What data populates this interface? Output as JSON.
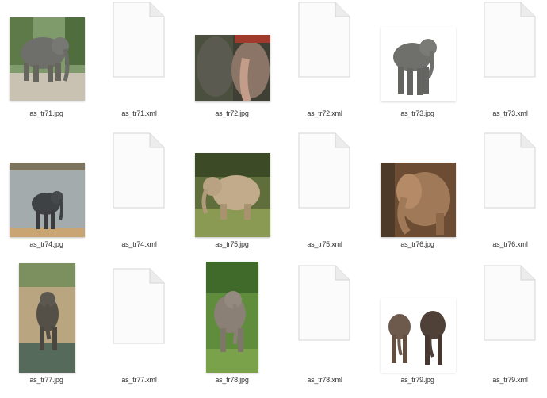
{
  "files": [
    {
      "name": "as_tr71.jpg",
      "type": "image",
      "icon": "elephant-photo-icon",
      "bg": "#8fa27a"
    },
    {
      "name": "as_tr71.xml",
      "type": "xml",
      "icon": "blank-document-icon"
    },
    {
      "name": "as_tr72.jpg",
      "type": "image",
      "icon": "elephant-photo-icon",
      "bg": "#4a4a3c"
    },
    {
      "name": "as_tr72.xml",
      "type": "xml",
      "icon": "blank-document-icon"
    },
    {
      "name": "as_tr73.jpg",
      "type": "image",
      "icon": "elephant-photo-icon",
      "bg": "#ffffff"
    },
    {
      "name": "as_tr73.xml",
      "type": "xml",
      "icon": "blank-document-icon"
    },
    {
      "name": "as_tr74.jpg",
      "type": "image",
      "icon": "elephant-photo-icon",
      "bg": "#9ea5a6"
    },
    {
      "name": "as_tr74.xml",
      "type": "xml",
      "icon": "blank-document-icon"
    },
    {
      "name": "as_tr75.jpg",
      "type": "image",
      "icon": "elephant-photo-icon",
      "bg": "#6f7d46"
    },
    {
      "name": "as_tr75.xml",
      "type": "xml",
      "icon": "blank-document-icon"
    },
    {
      "name": "as_tr76.jpg",
      "type": "image",
      "icon": "elephant-photo-icon",
      "bg": "#7a5a3e"
    },
    {
      "name": "as_tr76.xml",
      "type": "xml",
      "icon": "blank-document-icon"
    },
    {
      "name": "as_tr77.jpg",
      "type": "image",
      "icon": "elephant-photo-icon",
      "bg": "#b8a27c"
    },
    {
      "name": "as_tr77.xml",
      "type": "xml",
      "icon": "blank-document-icon"
    },
    {
      "name": "as_tr78.jpg",
      "type": "image",
      "icon": "elephant-photo-icon",
      "bg": "#5c8a3a"
    },
    {
      "name": "as_tr78.xml",
      "type": "xml",
      "icon": "blank-document-icon"
    },
    {
      "name": "as_tr79.jpg",
      "type": "image",
      "icon": "elephant-photo-icon",
      "bg": "#ffffff"
    },
    {
      "name": "as_tr79.xml",
      "type": "xml",
      "icon": "blank-document-icon"
    }
  ]
}
